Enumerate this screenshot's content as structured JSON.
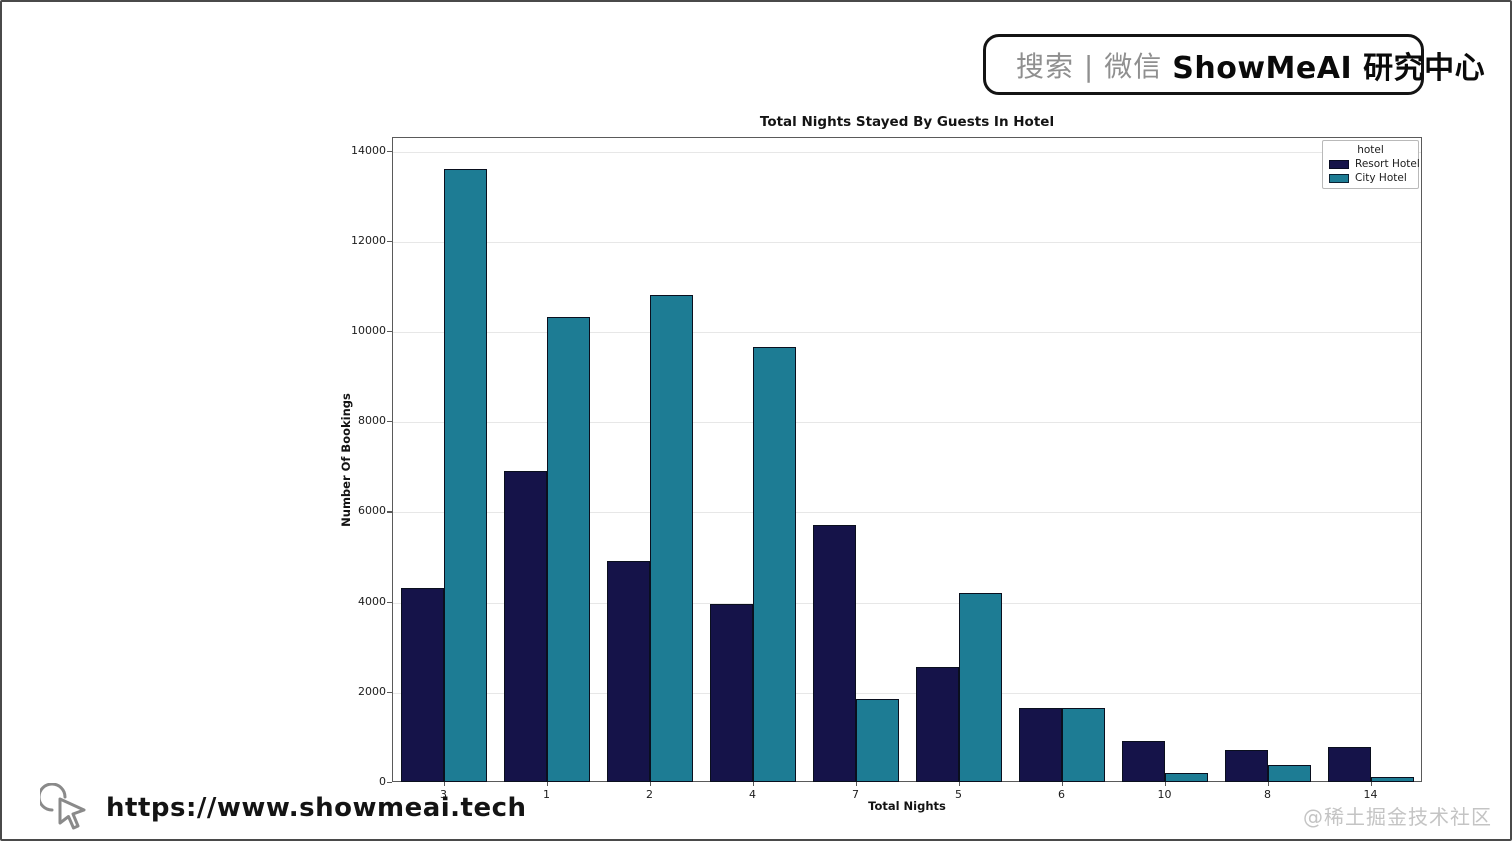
{
  "search_banner": {
    "prefix": "搜索 | 微信",
    "brand": "ShowMeAI 研究中心"
  },
  "footer": {
    "url": "https://www.showmeai.tech",
    "watermark": "@稀土掘金技术社区"
  },
  "chart_data": {
    "type": "bar",
    "title": "Total Nights Stayed By Guests In Hotel",
    "xlabel": "Total Nights",
    "ylabel": "Number Of Bookings",
    "categories": [
      "3",
      "1",
      "2",
      "4",
      "7",
      "5",
      "6",
      "10",
      "8",
      "14"
    ],
    "series": [
      {
        "name": "Resort Hotel",
        "color": "#151349",
        "values": [
          4300,
          6900,
          4900,
          3950,
          5700,
          2550,
          1630,
          900,
          700,
          780
        ]
      },
      {
        "name": "City Hotel",
        "color": "#1d7c94",
        "values": [
          13600,
          10300,
          10800,
          9650,
          1850,
          4200,
          1650,
          200,
          380,
          100
        ]
      }
    ],
    "legend": {
      "title": "hotel",
      "position": "upper right"
    },
    "yticks": [
      0,
      2000,
      4000,
      6000,
      8000,
      10000,
      12000,
      14000
    ],
    "ylim": [
      0,
      14300
    ],
    "grid": "horizontal",
    "colors": {
      "gridline": "#e7e7e7",
      "spine": "#5a5a5a",
      "bar_edge": "#0a0f1e"
    }
  }
}
